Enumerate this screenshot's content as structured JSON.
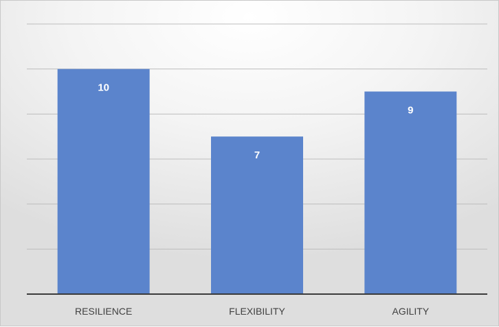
{
  "chart_data": {
    "type": "bar",
    "categories": [
      "RESILIENCE",
      "FLEXIBILITY",
      "AGILITY"
    ],
    "values": [
      10,
      7,
      9
    ],
    "ylim": [
      0,
      12
    ],
    "grid": true,
    "y_tick_step": 2,
    "title": "",
    "xlabel": "",
    "ylabel": "",
    "colors": {
      "bar": "#5b84cc",
      "grid": "#bdbdbd",
      "axis": "#3a3a3a"
    }
  }
}
